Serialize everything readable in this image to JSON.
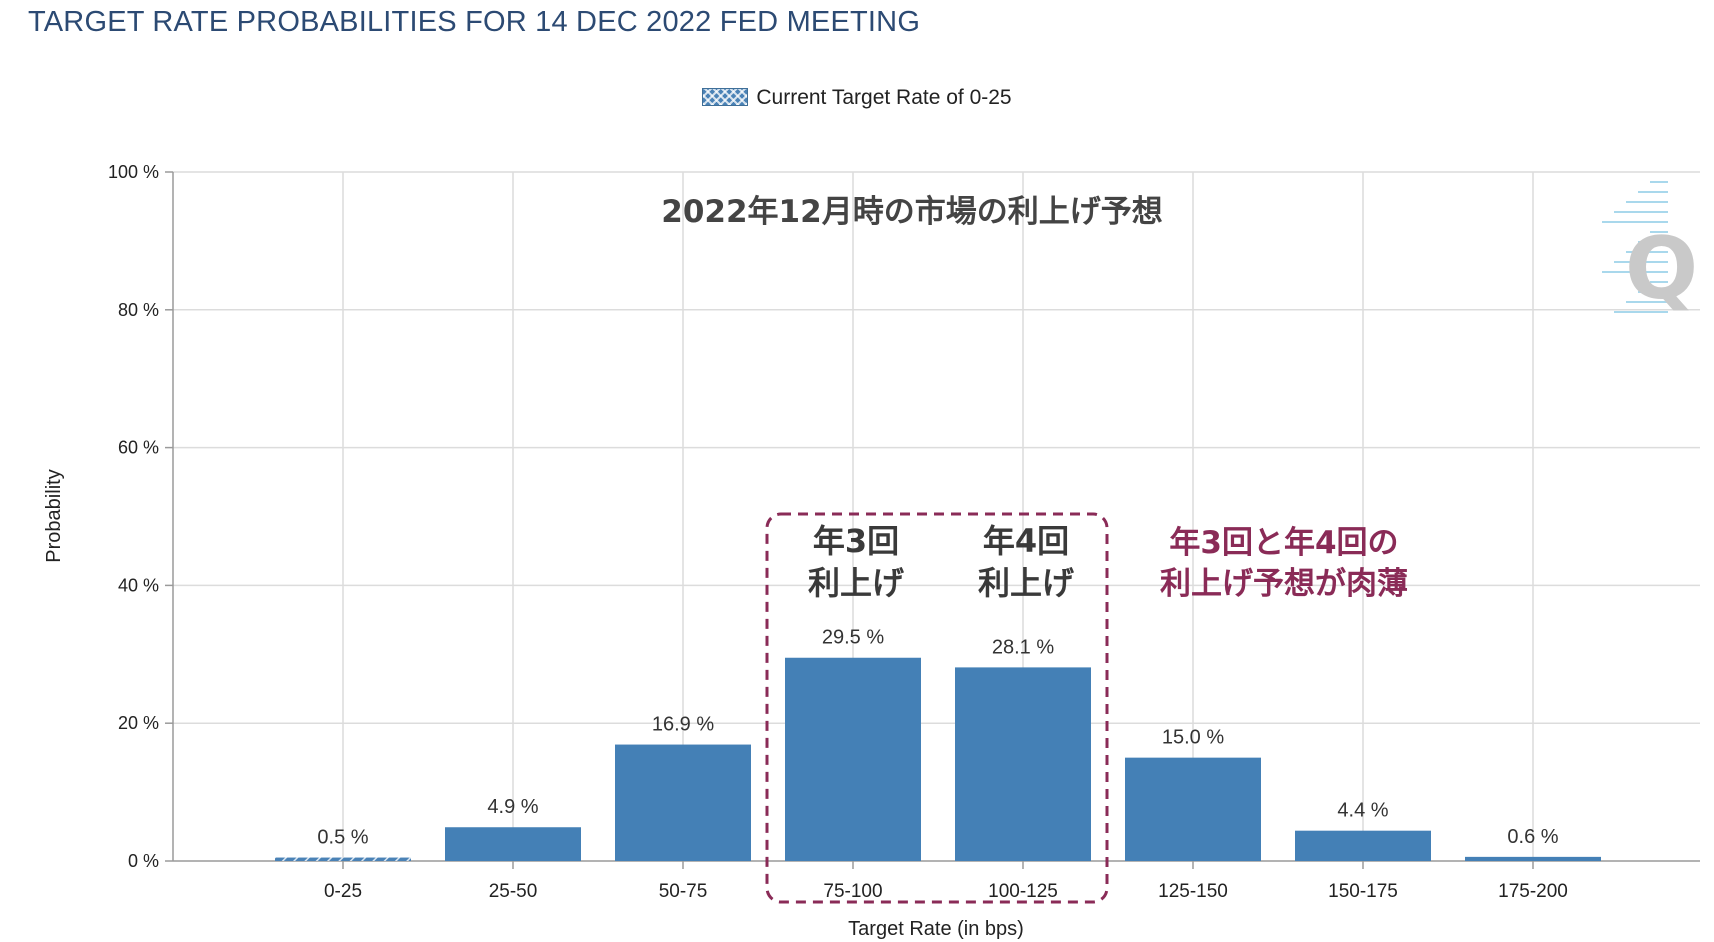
{
  "chart_data": {
    "type": "bar",
    "title": "TARGET RATE PROBABILITIES FOR 14 DEC 2022 FED MEETING",
    "legend": {
      "label": "Current Target Rate of 0-25",
      "placement": "top-center"
    },
    "xlabel": "Target Rate (in bps)",
    "ylabel": "Probability",
    "ylim": [
      0,
      100
    ],
    "y_ticks": [
      0,
      20,
      40,
      60,
      80,
      100
    ],
    "y_tick_suffix": " %",
    "grid": true,
    "categories": [
      "0-25",
      "25-50",
      "50-75",
      "75-100",
      "100-125",
      "125-150",
      "150-175",
      "175-200"
    ],
    "values": [
      0.5,
      4.9,
      16.9,
      29.5,
      28.1,
      15.0,
      4.4,
      0.6
    ],
    "data_labels": [
      "0.5 %",
      "4.9 %",
      "16.9 %",
      "29.5 %",
      "28.1 %",
      "15.0 %",
      "4.4 %",
      "0.6 %"
    ],
    "current_category": "0-25",
    "colors": {
      "bar": "#4480b6",
      "grid": "#dcdcdc",
      "highlight_box": "#8a2b57",
      "title": "#2c4a73"
    },
    "annotations": {
      "overlay_title": "2022年12月時の市場の利上げ予想",
      "bar_notes": [
        {
          "category": "75-100",
          "lines": [
            "年3回",
            "利上げ"
          ]
        },
        {
          "category": "100-125",
          "lines": [
            "年4回",
            "利上げ"
          ]
        }
      ],
      "highlight_categories": [
        "75-100",
        "100-125"
      ],
      "side_note": [
        "年3回と年4回の",
        "利上げ予想が肉薄"
      ]
    },
    "watermark": "Q"
  }
}
